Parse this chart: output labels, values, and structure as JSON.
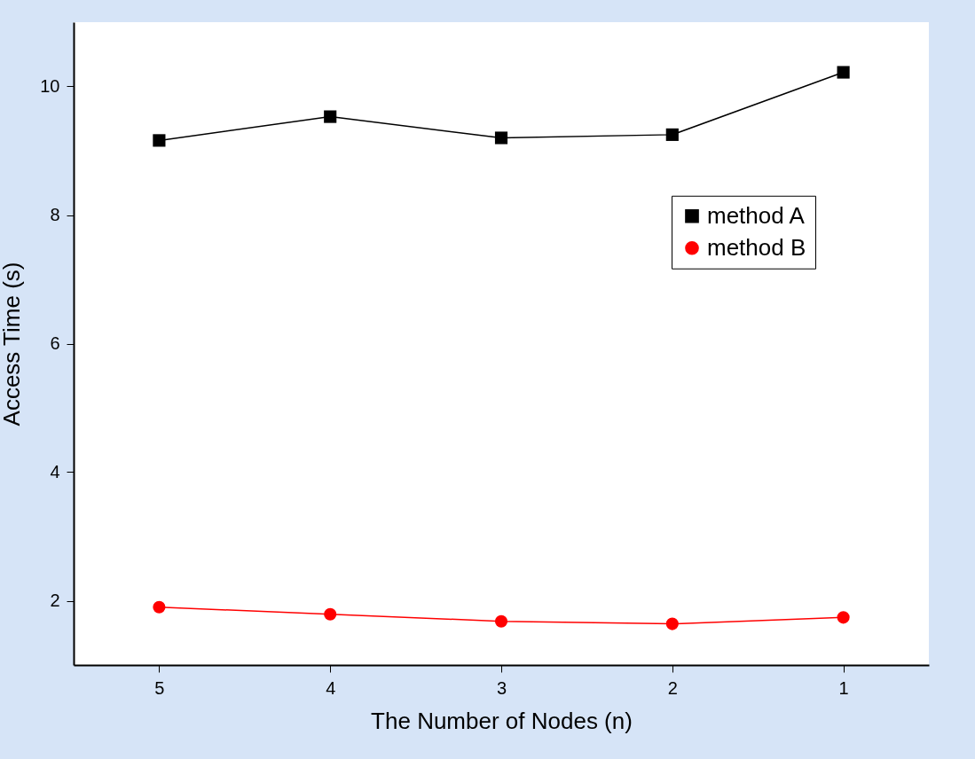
{
  "chart_data": {
    "type": "line",
    "xlabel": "The Number of Nodes (n)",
    "ylabel": "Access Time (s)",
    "x": [
      5,
      4,
      3,
      2,
      1
    ],
    "xlim": [
      5.5,
      0.5
    ],
    "xticks": [
      5,
      4,
      3,
      2,
      1
    ],
    "ylim": [
      1,
      11
    ],
    "yticks": [
      2,
      4,
      6,
      8,
      10
    ],
    "series": [
      {
        "name": "method A",
        "color": "#000000",
        "marker": "square",
        "values": [
          9.16,
          9.53,
          9.2,
          9.25,
          10.22
        ]
      },
      {
        "name": "method B",
        "color": "#ff0000",
        "marker": "circle",
        "values": [
          1.9,
          1.79,
          1.68,
          1.64,
          1.74
        ]
      }
    ],
    "legend": "right",
    "grid": false,
    "line_style": "solid"
  }
}
